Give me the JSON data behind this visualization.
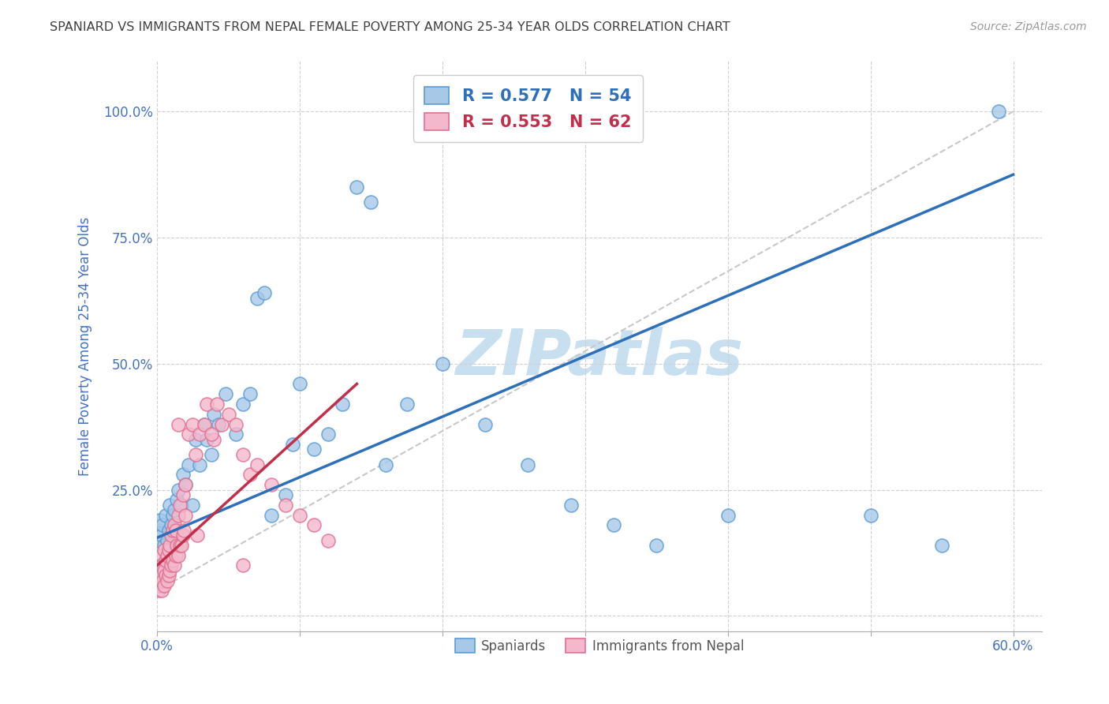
{
  "title": "SPANIARD VS IMMIGRANTS FROM NEPAL FEMALE POVERTY AMONG 25-34 YEAR OLDS CORRELATION CHART",
  "source": "Source: ZipAtlas.com",
  "ylabel": "Female Poverty Among 25-34 Year Olds",
  "xlim": [
    0.0,
    0.62
  ],
  "ylim": [
    -0.03,
    1.1
  ],
  "xticks": [
    0.0,
    0.1,
    0.2,
    0.3,
    0.4,
    0.5,
    0.6
  ],
  "xticklabels": [
    "0.0%",
    "",
    "",
    "",
    "",
    "",
    "60.0%"
  ],
  "yticks": [
    0.0,
    0.25,
    0.5,
    0.75,
    1.0
  ],
  "yticklabels": [
    "",
    "25.0%",
    "50.0%",
    "75.0%",
    "100.0%"
  ],
  "legend_r_blue": "R = 0.577",
  "legend_n_blue": "N = 54",
  "legend_r_pink": "R = 0.553",
  "legend_n_pink": "N = 62",
  "blue_color": "#a8c8e8",
  "blue_edge_color": "#5b9bd5",
  "pink_color": "#f4b8cc",
  "pink_edge_color": "#e07090",
  "blue_line_color": "#2e6fba",
  "pink_line_color": "#c0304a",
  "diagonal_color": "#c8c8c8",
  "title_color": "#404040",
  "tick_color": "#4472c4",
  "grid_color": "#d0d0d0",
  "watermark": "ZIPatlas",
  "watermark_color": "#c8dff0",
  "blue_line_x0": 0.0,
  "blue_line_y0": 0.155,
  "blue_line_x1": 0.6,
  "blue_line_y1": 0.875,
  "pink_line_x0": 0.0,
  "pink_line_y0": 0.1,
  "pink_line_x1": 0.14,
  "pink_line_y1": 0.46,
  "spaniards_x": [
    0.001,
    0.002,
    0.002,
    0.003,
    0.004,
    0.005,
    0.006,
    0.007,
    0.008,
    0.009,
    0.01,
    0.011,
    0.012,
    0.014,
    0.015,
    0.017,
    0.018,
    0.02,
    0.022,
    0.025,
    0.027,
    0.03,
    0.033,
    0.035,
    0.038,
    0.04,
    0.043,
    0.048,
    0.055,
    0.06,
    0.065,
    0.07,
    0.075,
    0.08,
    0.09,
    0.095,
    0.1,
    0.11,
    0.12,
    0.13,
    0.14,
    0.15,
    0.16,
    0.175,
    0.2,
    0.23,
    0.26,
    0.29,
    0.32,
    0.35,
    0.4,
    0.5,
    0.55,
    0.59
  ],
  "spaniards_y": [
    0.15,
    0.17,
    0.19,
    0.16,
    0.18,
    0.14,
    0.2,
    0.15,
    0.17,
    0.22,
    0.18,
    0.2,
    0.21,
    0.23,
    0.25,
    0.22,
    0.28,
    0.26,
    0.3,
    0.22,
    0.35,
    0.3,
    0.38,
    0.35,
    0.32,
    0.4,
    0.38,
    0.44,
    0.36,
    0.42,
    0.44,
    0.63,
    0.64,
    0.2,
    0.24,
    0.34,
    0.46,
    0.33,
    0.36,
    0.42,
    0.85,
    0.82,
    0.3,
    0.42,
    0.5,
    0.38,
    0.3,
    0.22,
    0.18,
    0.14,
    0.2,
    0.2,
    0.14,
    1.0
  ],
  "nepal_x": [
    0.001,
    0.001,
    0.002,
    0.002,
    0.003,
    0.003,
    0.003,
    0.004,
    0.004,
    0.005,
    0.005,
    0.005,
    0.006,
    0.006,
    0.007,
    0.007,
    0.008,
    0.008,
    0.009,
    0.009,
    0.01,
    0.01,
    0.011,
    0.011,
    0.012,
    0.012,
    0.013,
    0.013,
    0.014,
    0.015,
    0.015,
    0.016,
    0.016,
    0.017,
    0.018,
    0.018,
    0.019,
    0.02,
    0.02,
    0.022,
    0.025,
    0.027,
    0.03,
    0.033,
    0.035,
    0.04,
    0.045,
    0.05,
    0.055,
    0.06,
    0.065,
    0.07,
    0.08,
    0.09,
    0.1,
    0.11,
    0.12,
    0.038,
    0.042,
    0.028,
    0.015,
    0.06
  ],
  "nepal_y": [
    0.05,
    0.08,
    0.06,
    0.1,
    0.05,
    0.08,
    0.12,
    0.07,
    0.1,
    0.06,
    0.09,
    0.13,
    0.08,
    0.11,
    0.07,
    0.12,
    0.08,
    0.13,
    0.09,
    0.14,
    0.1,
    0.16,
    0.11,
    0.17,
    0.1,
    0.18,
    0.12,
    0.17,
    0.14,
    0.12,
    0.2,
    0.14,
    0.22,
    0.14,
    0.16,
    0.24,
    0.17,
    0.2,
    0.26,
    0.36,
    0.38,
    0.32,
    0.36,
    0.38,
    0.42,
    0.35,
    0.38,
    0.4,
    0.38,
    0.32,
    0.28,
    0.3,
    0.26,
    0.22,
    0.2,
    0.18,
    0.15,
    0.36,
    0.42,
    0.16,
    0.38,
    0.1
  ]
}
